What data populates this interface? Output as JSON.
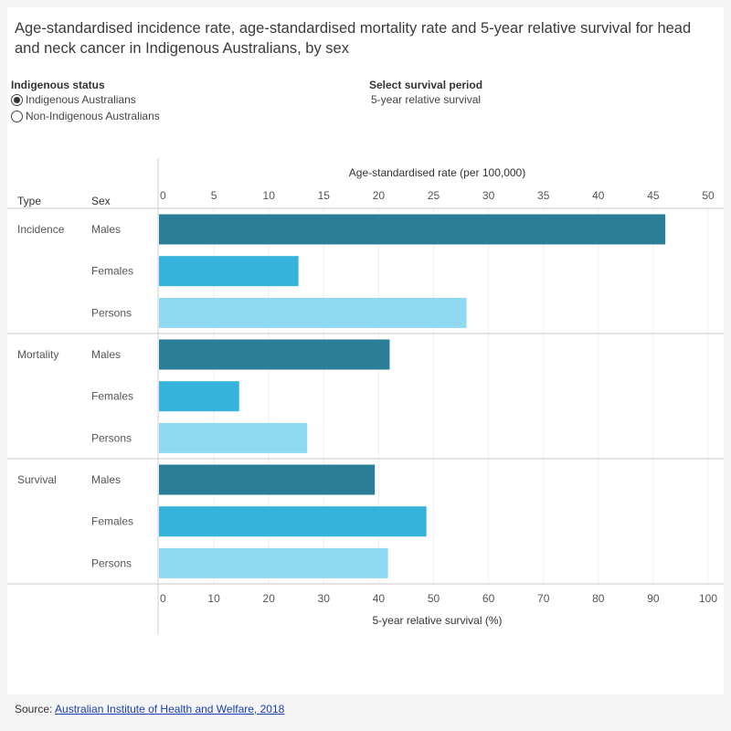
{
  "title": "Age-standardised incidence rate, age-standardised mortality rate and 5-year relative survival for head and neck cancer in Indigenous Australians, by sex",
  "filters": {
    "indigenous_status": {
      "label": "Indigenous status",
      "options": [
        {
          "label": "Indigenous Australians",
          "checked": true
        },
        {
          "label": "Non-Indigenous Australians",
          "checked": false
        }
      ]
    },
    "survival_period": {
      "label": "Select survival period",
      "value": "5-year relative survival"
    }
  },
  "source": {
    "prefix": "Source: ",
    "link_text": "Australian Institute of Health and Welfare, 2018"
  },
  "colors": {
    "males": "#2a7f96",
    "females": "#35b3dd",
    "persons": "#8fd9f2"
  },
  "chart_data": {
    "type": "bar",
    "orientation": "horizontal",
    "column_headers": {
      "type": "Type",
      "sex": "Sex"
    },
    "top_axis": {
      "label": "Age-standardised rate (per 100,000)",
      "range": [
        0,
        50
      ],
      "ticks": [
        0,
        5,
        10,
        15,
        20,
        25,
        30,
        35,
        40,
        45,
        50
      ]
    },
    "bottom_axis": {
      "label": "5-year relative survival (%)",
      "range": [
        0,
        100
      ],
      "ticks": [
        0,
        10,
        20,
        30,
        40,
        50,
        60,
        70,
        80,
        90,
        100
      ]
    },
    "groups": [
      {
        "type": "Incidence",
        "axis": "top",
        "rows": [
          {
            "sex": "Males",
            "value": 46.1
          },
          {
            "sex": "Females",
            "value": 12.7
          },
          {
            "sex": "Persons",
            "value": 28.0
          }
        ]
      },
      {
        "type": "Mortality",
        "axis": "top",
        "rows": [
          {
            "sex": "Males",
            "value": 21.0
          },
          {
            "sex": "Females",
            "value": 7.3
          },
          {
            "sex": "Persons",
            "value": 13.5
          }
        ]
      },
      {
        "type": "Survival",
        "axis": "bottom",
        "rows": [
          {
            "sex": "Males",
            "value": 39.3
          },
          {
            "sex": "Females",
            "value": 48.7
          },
          {
            "sex": "Persons",
            "value": 41.7
          }
        ]
      }
    ]
  }
}
